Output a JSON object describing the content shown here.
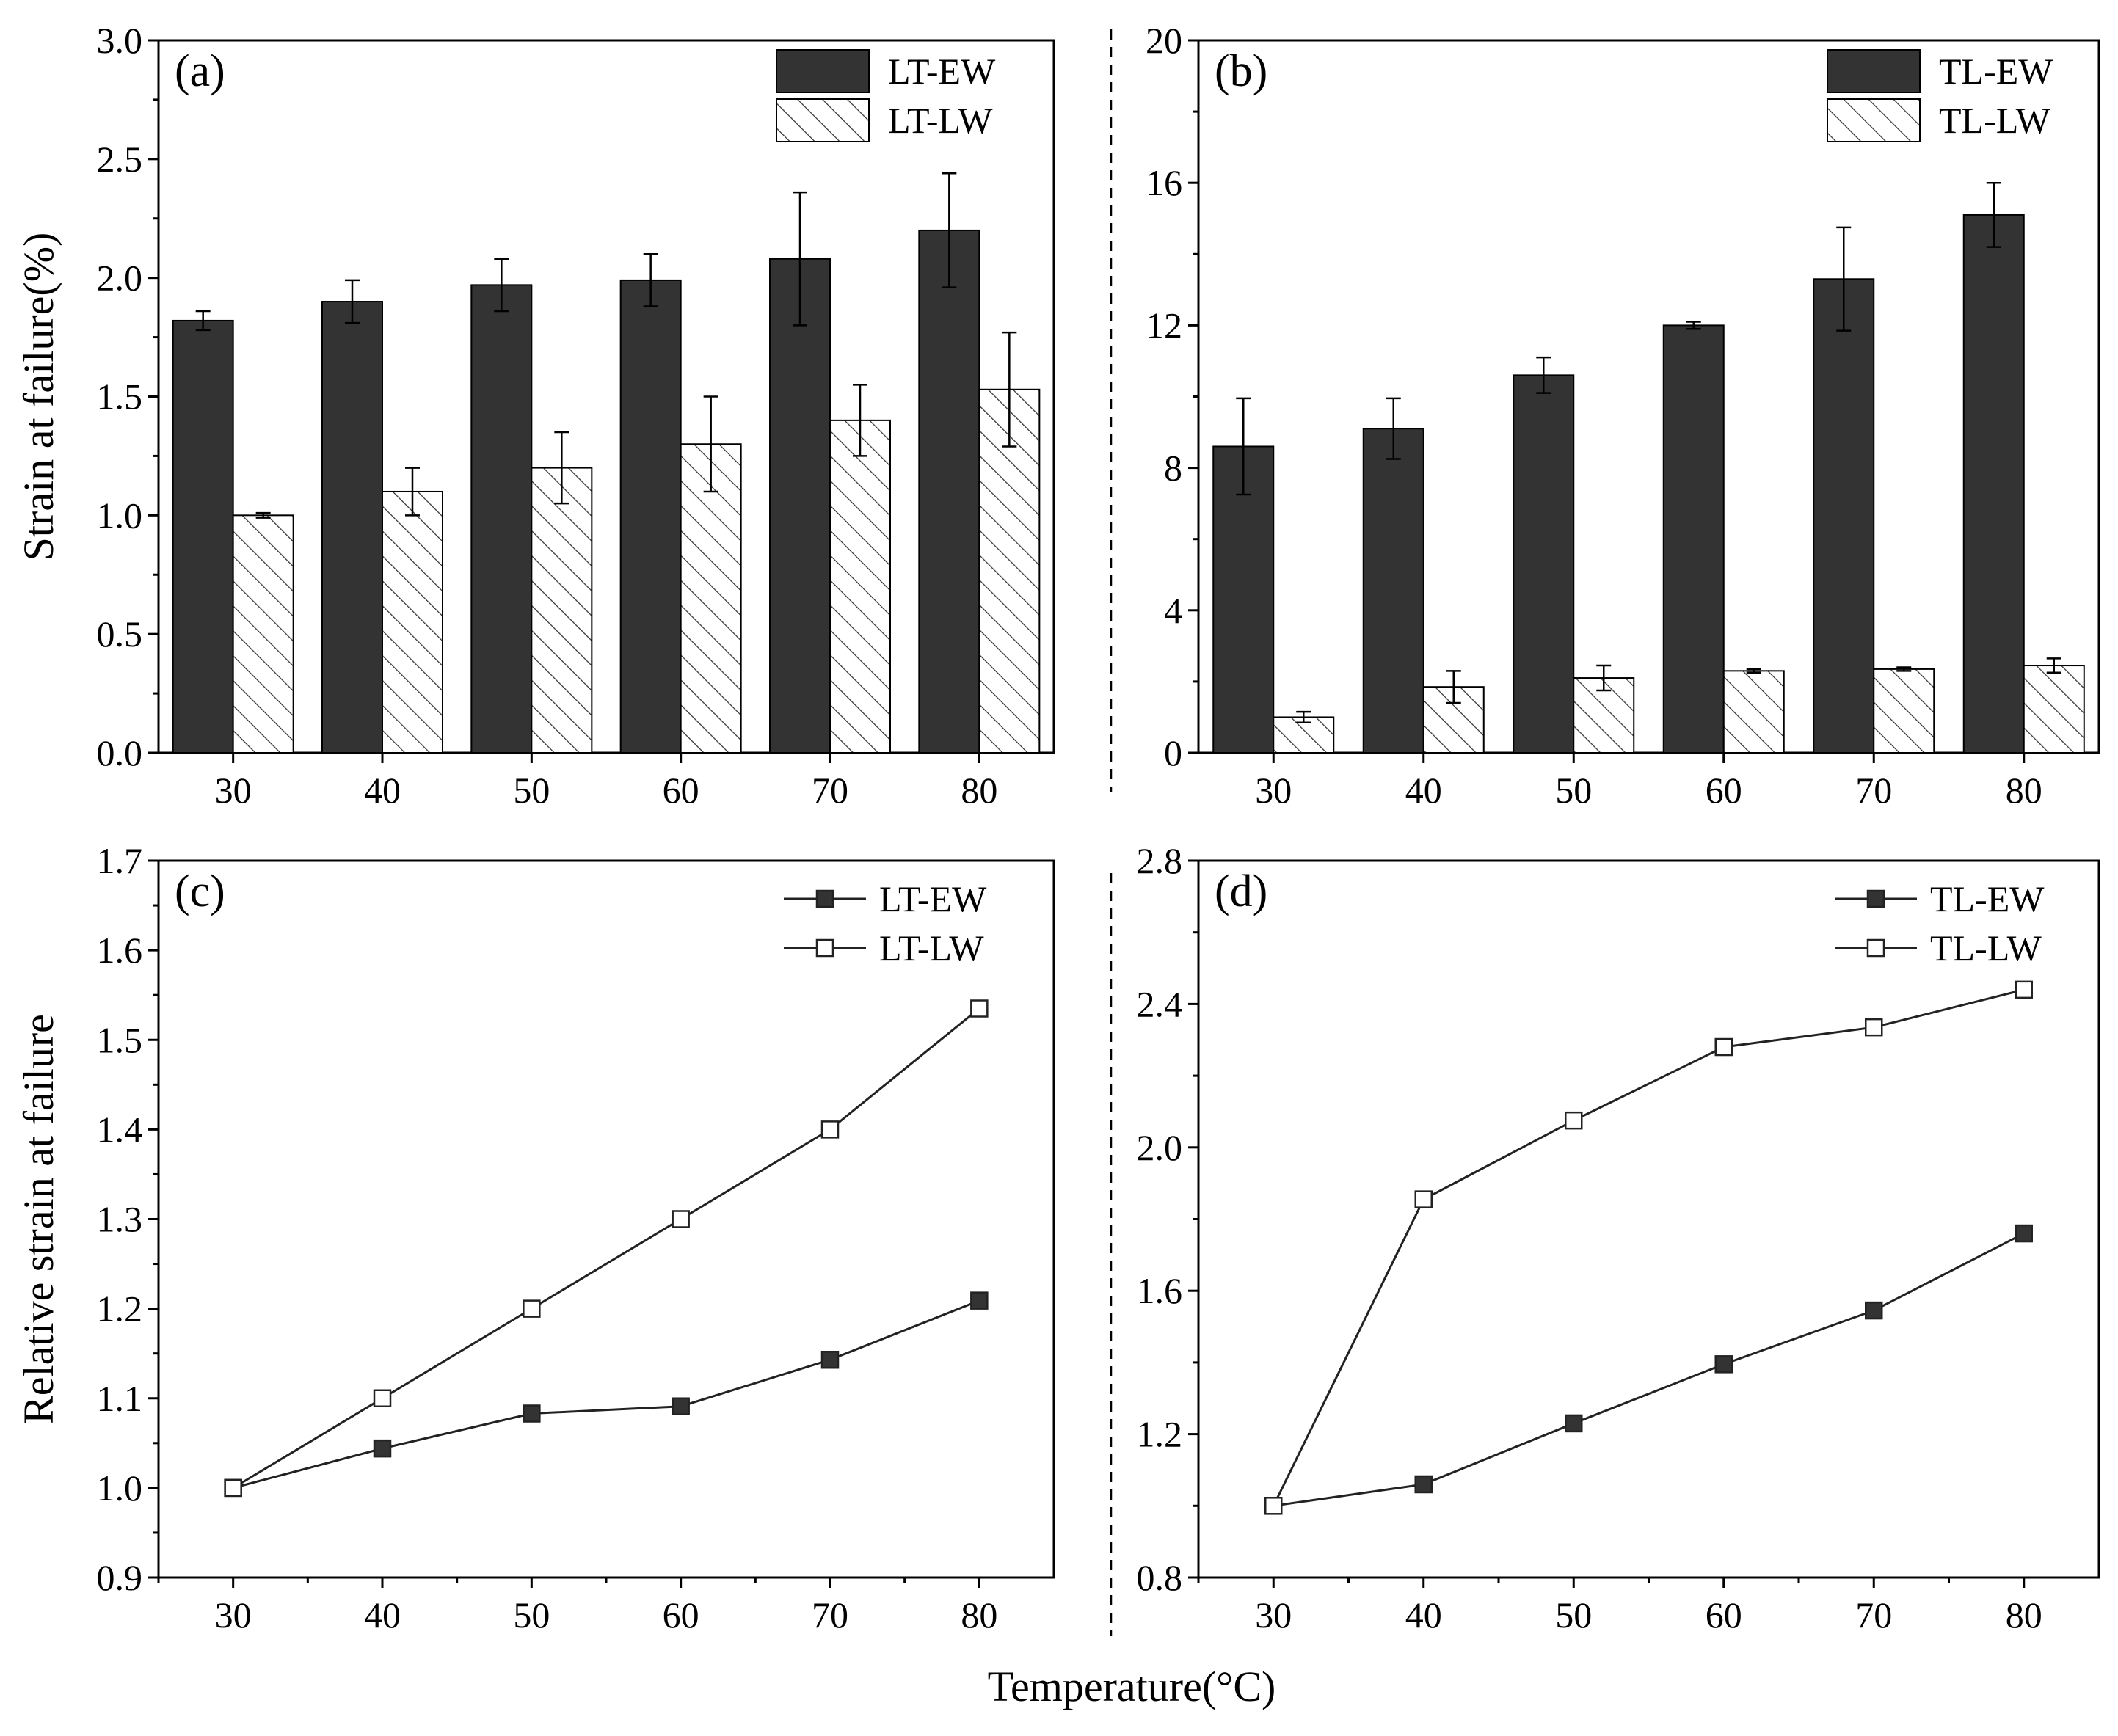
{
  "chart_data": [
    {
      "id": "a",
      "type": "bar",
      "panel_label": "(a)",
      "categories": [
        "30",
        "40",
        "50",
        "60",
        "70",
        "80"
      ],
      "ylabel": "Strain at failure(%)",
      "xlabel": "",
      "ylim": [
        0,
        3.0
      ],
      "yticks": [
        "0.0",
        "0.5",
        "1.0",
        "1.5",
        "2.0",
        "2.5",
        "3.0"
      ],
      "legend_position": "top-right",
      "series": [
        {
          "name": "LT-EW",
          "style": "solid",
          "values": [
            1.82,
            1.9,
            1.97,
            1.99,
            2.08,
            2.2
          ],
          "errors": [
            0.04,
            0.09,
            0.11,
            0.11,
            0.28,
            0.24
          ]
        },
        {
          "name": "LT-LW",
          "style": "hatched",
          "values": [
            1.0,
            1.1,
            1.2,
            1.3,
            1.4,
            1.53
          ],
          "errors": [
            0.01,
            0.1,
            0.15,
            0.2,
            0.15,
            0.24
          ]
        }
      ]
    },
    {
      "id": "b",
      "type": "bar",
      "panel_label": "(b)",
      "categories": [
        "30",
        "40",
        "50",
        "60",
        "70",
        "80"
      ],
      "ylabel": "",
      "xlabel": "",
      "ylim": [
        0,
        20
      ],
      "yticks": [
        "0",
        "4",
        "8",
        "12",
        "16",
        "20"
      ],
      "legend_position": "top-right",
      "series": [
        {
          "name": "TL-EW",
          "style": "solid",
          "values": [
            8.6,
            9.1,
            10.6,
            12.0,
            13.3,
            15.1
          ],
          "errors": [
            1.35,
            0.85,
            0.5,
            0.1,
            1.45,
            0.9
          ]
        },
        {
          "name": "TL-LW",
          "style": "hatched",
          "values": [
            1.0,
            1.85,
            2.1,
            2.3,
            2.35,
            2.45
          ],
          "errors": [
            0.15,
            0.45,
            0.35,
            0.05,
            0.05,
            0.2
          ]
        }
      ]
    },
    {
      "id": "c",
      "type": "line",
      "panel_label": "(c)",
      "x": [
        30,
        40,
        50,
        60,
        70,
        80
      ],
      "xticks": [
        "30",
        "40",
        "50",
        "60",
        "70",
        "80"
      ],
      "ylabel": "Relative strain at failure",
      "xlabel": "",
      "xlim": [
        25,
        85
      ],
      "ylim": [
        0.9,
        1.7
      ],
      "yticks": [
        "0.9",
        "1.0",
        "1.1",
        "1.2",
        "1.3",
        "1.4",
        "1.5",
        "1.6",
        "1.7"
      ],
      "legend_position": "top-right",
      "series": [
        {
          "name": "LT-EW",
          "marker": "filled-square",
          "values": [
            1.0,
            1.044,
            1.083,
            1.091,
            1.143,
            1.209
          ]
        },
        {
          "name": "LT-LW",
          "marker": "open-square",
          "values": [
            1.0,
            1.1,
            1.2,
            1.3,
            1.4,
            1.535
          ]
        }
      ]
    },
    {
      "id": "d",
      "type": "line",
      "panel_label": "(d)",
      "x": [
        30,
        40,
        50,
        60,
        70,
        80
      ],
      "xticks": [
        "30",
        "40",
        "50",
        "60",
        "70",
        "80"
      ],
      "ylabel": "",
      "xlabel": "",
      "xlim": [
        25,
        85
      ],
      "ylim": [
        0.8,
        2.8
      ],
      "yticks": [
        "0.8",
        "1.2",
        "1.6",
        "2.0",
        "2.4",
        "2.8"
      ],
      "legend_position": "top-right",
      "series": [
        {
          "name": "TL-EW",
          "marker": "filled-square",
          "values": [
            1.0,
            1.06,
            1.23,
            1.395,
            1.545,
            1.76
          ]
        },
        {
          "name": "TL-LW",
          "marker": "open-square",
          "values": [
            1.0,
            1.855,
            2.075,
            2.28,
            2.335,
            2.44
          ]
        }
      ]
    }
  ],
  "shared_xlabel": "Temperature(°C)",
  "colors": {
    "bar_fill": "#333333",
    "hatch_stroke": "#333333",
    "marker_fill": "#333333",
    "line": "#222222"
  }
}
